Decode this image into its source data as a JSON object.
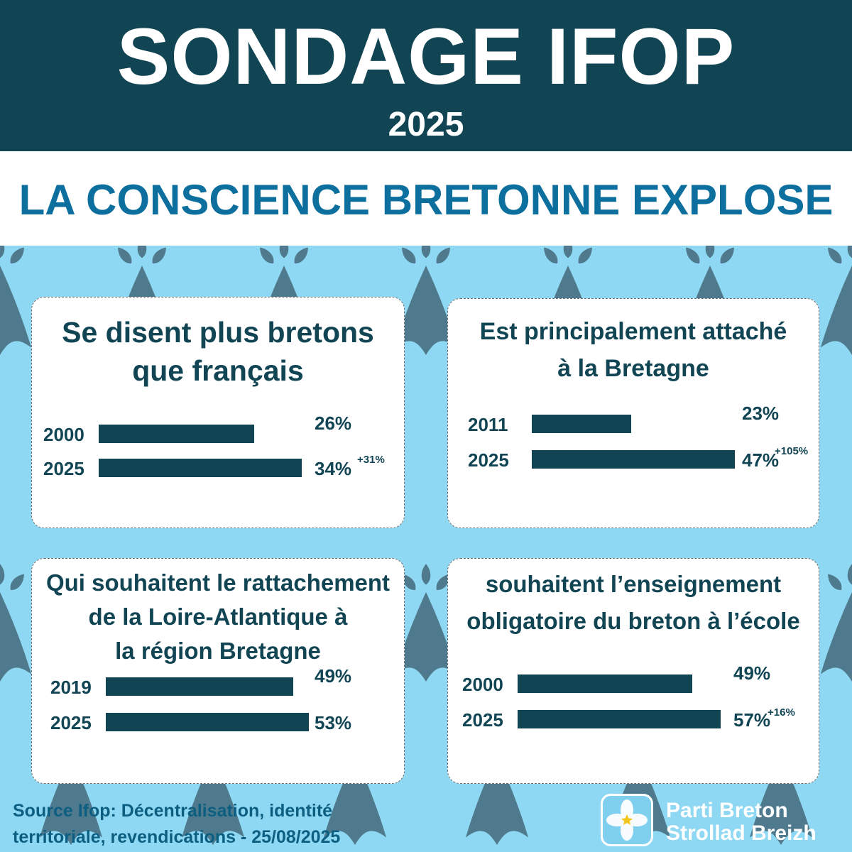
{
  "header": {
    "title": "SONDAGE IFOP",
    "year": "2025"
  },
  "subtitle": "LA CONSCIENCE BRETONNE EXPLOSE",
  "colors": {
    "dark_teal": "#124554",
    "title_blue": "#0d6f9e",
    "light_blue_bg": "#8fd8f3",
    "ermine_pattern": "#4f7a8d",
    "white": "#ffffff"
  },
  "source_lines": [
    "Source Ifop: Décentralisation, identité",
    "territoriale, revendications - 25/08/2025"
  ],
  "brand": {
    "line1": "Parti Breton",
    "line2": "Strollad Breizh",
    "icon": "star-flower-icon"
  },
  "chart_data": [
    {
      "type": "bar",
      "title": "Se disent plus bretons que français",
      "categories": [
        "2000",
        "2025"
      ],
      "values": [
        26,
        34
      ],
      "value_labels": [
        "26%",
        "34%"
      ],
      "annotation": "+31%"
    },
    {
      "type": "bar",
      "title": "Est principalement attaché à la Bretagne",
      "categories": [
        "2011",
        "2025"
      ],
      "values": [
        23,
        47
      ],
      "value_labels": [
        "23%",
        "47%"
      ],
      "annotation": "+105%"
    },
    {
      "type": "bar",
      "title": "Qui souhaitent le rattachement de la Loire-Atlantique à la région Bretagne",
      "categories": [
        "2019",
        "2025"
      ],
      "values": [
        49,
        53
      ],
      "value_labels": [
        "49%",
        "53%"
      ],
      "annotation": ""
    },
    {
      "type": "bar",
      "title": "souhaitent l’enseignement obligatoire du breton à l’école",
      "categories": [
        "2000",
        "2025"
      ],
      "values": [
        49,
        57
      ],
      "value_labels": [
        "49%",
        "57%"
      ],
      "annotation": "+16%"
    }
  ]
}
